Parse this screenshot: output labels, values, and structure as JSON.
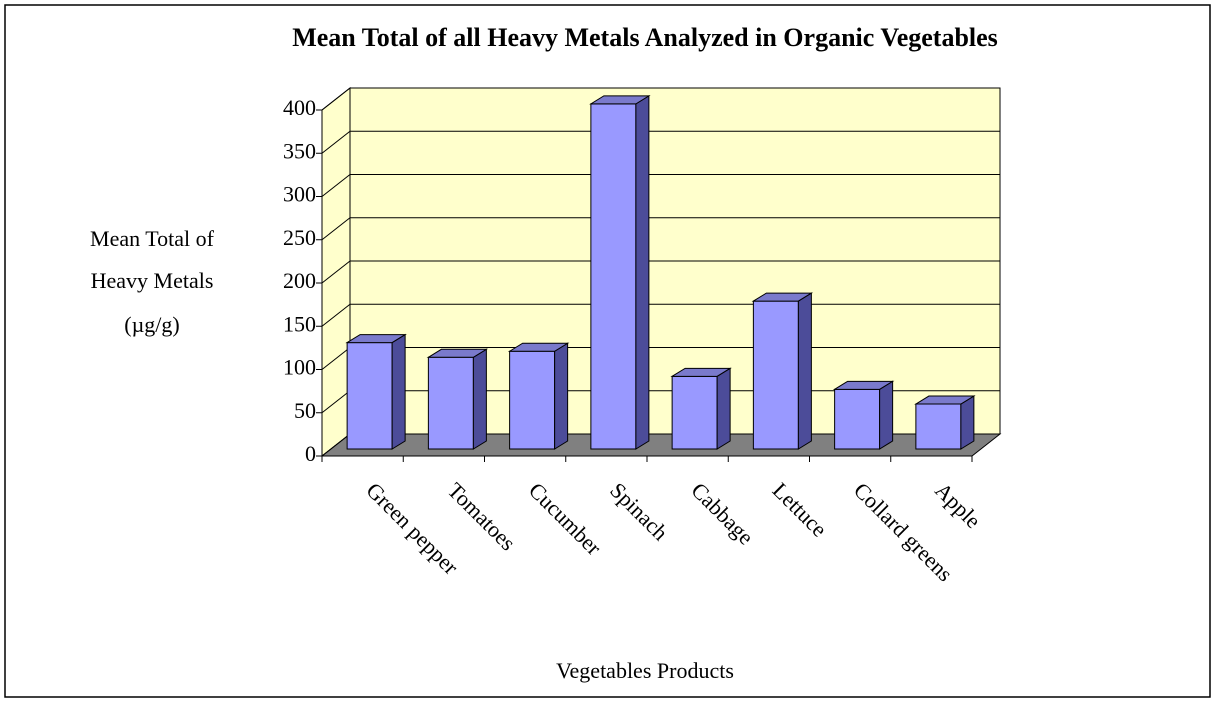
{
  "chart_data": {
    "type": "bar3d",
    "title": "Mean Total of all Heavy Metals Analyzed in Organic Vegetables",
    "y_label": [
      "Mean Total of",
      "Heavy Metals",
      "(µg/g)"
    ],
    "x_label": "Vegetables Products",
    "categories": [
      "Green pepper",
      "Tomatoes",
      "Cucumber",
      "Spinach",
      "Cabbage",
      "Lettuce",
      "Collard greens",
      "Apple"
    ],
    "values": [
      123,
      106,
      113,
      399,
      84,
      171,
      69,
      52
    ],
    "color": "#9999ff",
    "ylim": [
      0,
      400
    ],
    "yticks": [
      0,
      50,
      100,
      150,
      200,
      250,
      300,
      350,
      400
    ],
    "grid": true
  }
}
